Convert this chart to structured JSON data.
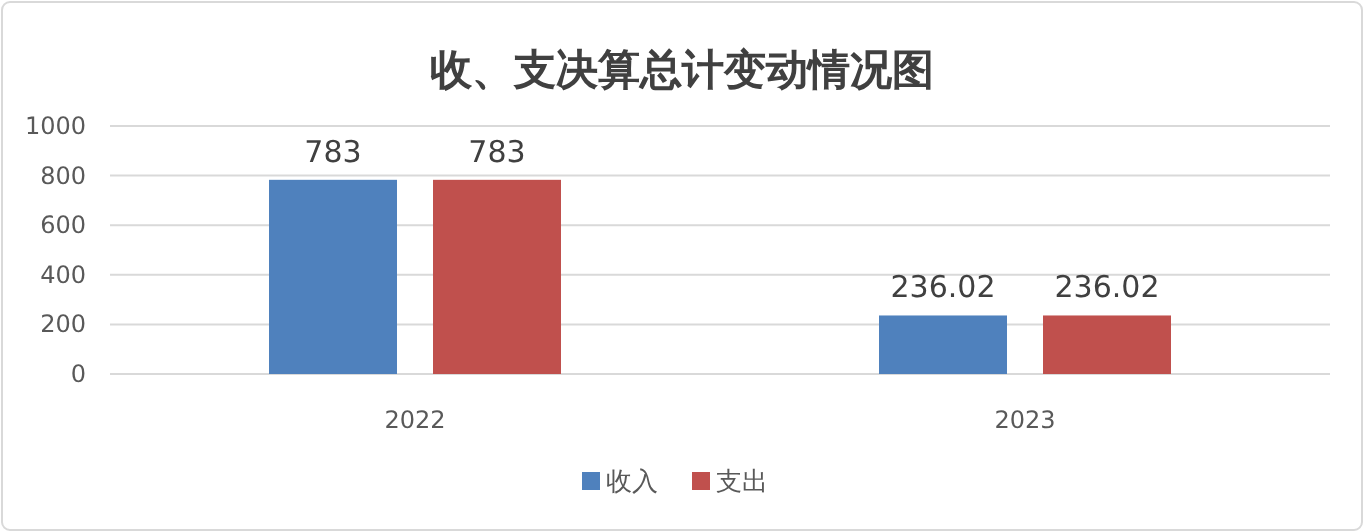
{
  "chart_data": {
    "type": "bar",
    "title": "收、支决算总计变动情况图",
    "categories": [
      "2022",
      "2023"
    ],
    "series": [
      {
        "name": "收入",
        "color": "#4f81bd",
        "values": [
          783,
          236.02
        ]
      },
      {
        "name": "支出",
        "color": "#c0504d",
        "values": [
          783,
          236.02
        ]
      }
    ],
    "ylim": [
      0,
      1000
    ],
    "yticks": [
      0,
      200,
      400,
      600,
      800,
      1000
    ],
    "grid": "y",
    "legend": "bottom",
    "data_labels": true
  }
}
